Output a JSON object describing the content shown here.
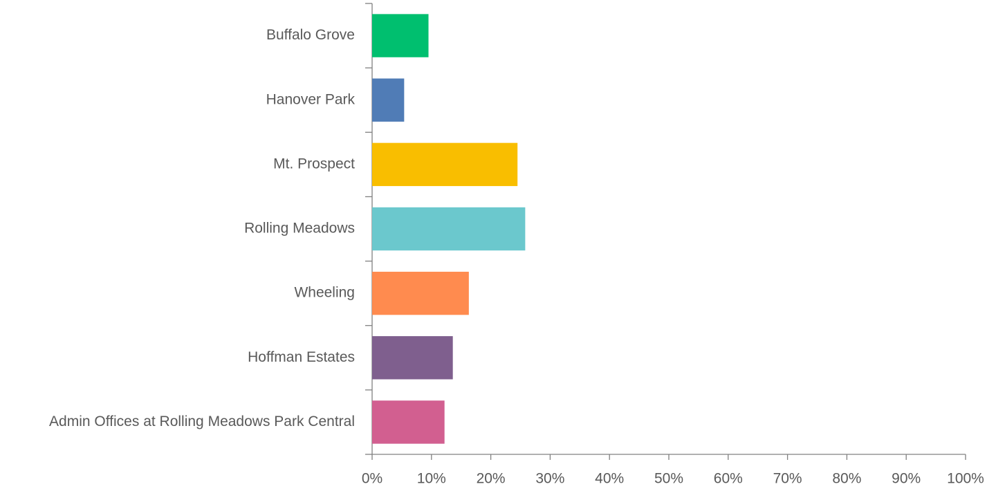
{
  "chart_data": {
    "type": "barh",
    "categories": [
      "Buffalo Grove",
      "Hanover Park",
      "Mt. Prospect",
      "Rolling Meadows",
      "Wheeling",
      "Hoffman Estates",
      "Admin Offices at Rolling Meadows Park Central"
    ],
    "values": [
      9.5,
      5.4,
      24.5,
      25.8,
      16.3,
      13.6,
      12.2
    ],
    "colors": [
      "#00bf6f",
      "#507cb6",
      "#f9be00",
      "#6bc8cd",
      "#ff8b4f",
      "#7f5f8e",
      "#d25f90"
    ],
    "xlim": [
      0,
      100
    ],
    "xticks": [
      {
        "value": 0,
        "label": "0%"
      },
      {
        "value": 10,
        "label": "10%"
      },
      {
        "value": 20,
        "label": "20%"
      },
      {
        "value": 30,
        "label": "30%"
      },
      {
        "value": 40,
        "label": "40%"
      },
      {
        "value": 50,
        "label": "50%"
      },
      {
        "value": 60,
        "label": "60%"
      },
      {
        "value": 70,
        "label": "70%"
      },
      {
        "value": 80,
        "label": "80%"
      },
      {
        "value": 90,
        "label": "90%"
      },
      {
        "value": 100,
        "label": "100%"
      }
    ],
    "grid": false
  }
}
